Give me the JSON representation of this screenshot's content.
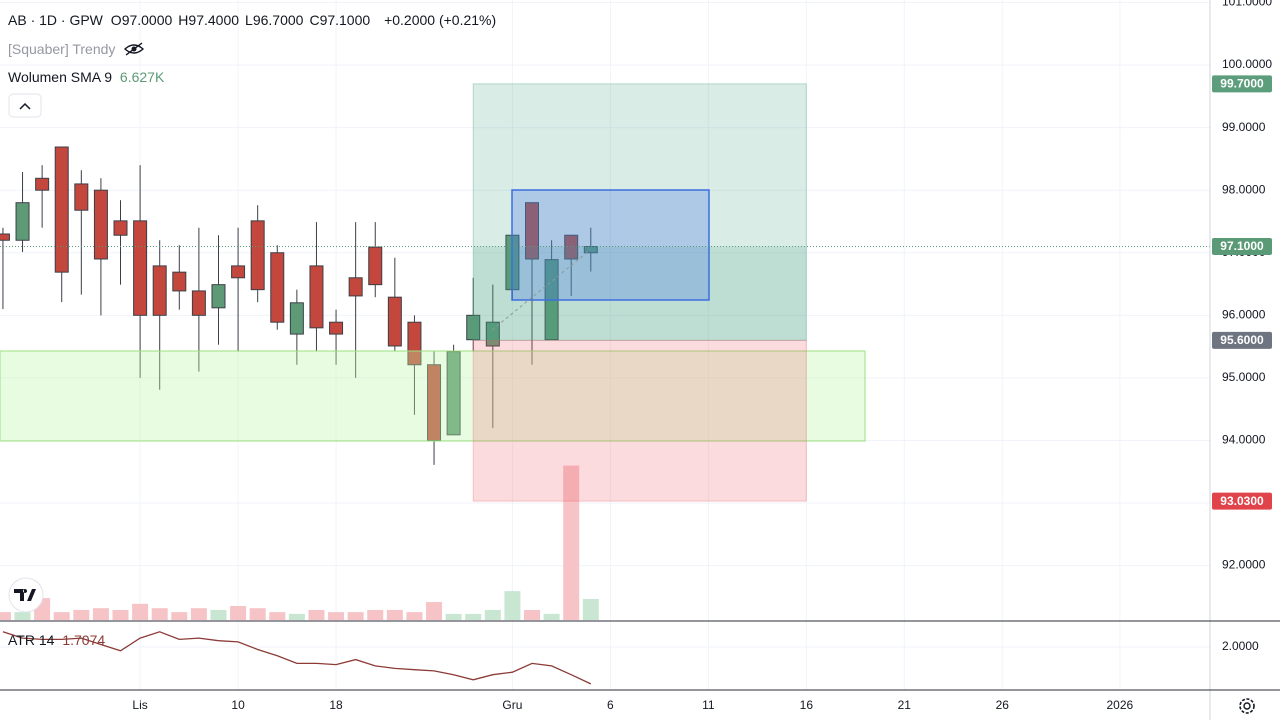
{
  "header": {
    "symbol": "AB · 1D · GPW",
    "ohlc": [
      {
        "key": "O",
        "value": "97.0000"
      },
      {
        "key": "H",
        "value": "97.4000"
      },
      {
        "key": "L",
        "value": "96.7000"
      },
      {
        "key": "C",
        "value": "97.1000"
      }
    ],
    "change": "+0.2000 (+0.21%)"
  },
  "indicators": {
    "trend": "[Squaber] Trendy",
    "volume_label": "Wolumen SMA 9",
    "volume_value": "6.627K",
    "atr_label": "ATR 14",
    "atr_value": "1.7074"
  },
  "chart_data": {
    "type": "candlestick",
    "open": [
      97.3,
      97.2,
      98.19,
      98.69,
      98.1,
      98.0,
      97.51,
      97.51,
      96.79,
      96.69,
      96.39,
      96.12,
      96.79,
      97.51,
      97.0,
      95.7,
      96.79,
      95.89,
      96.6,
      97.09,
      96.29,
      95.89,
      95.21,
      94.09,
      95.61,
      95.51,
      96.41,
      97.8,
      95.61,
      97.28,
      97.0
    ],
    "high": [
      97.4,
      98.29,
      98.4,
      98.69,
      98.32,
      98.19,
      97.84,
      98.4,
      97.2,
      97.12,
      97.4,
      97.28,
      97.4,
      97.76,
      97.12,
      96.41,
      97.49,
      96.09,
      97.49,
      97.49,
      96.92,
      96.0,
      95.42,
      95.53,
      96.6,
      96.49,
      97.28,
      97.8,
      97.2,
      97.28,
      97.4
    ],
    "low": [
      96.1,
      97.01,
      97.4,
      96.21,
      96.33,
      96.0,
      96.49,
      95.0,
      94.81,
      96.09,
      95.1,
      95.53,
      95.42,
      96.21,
      95.77,
      95.21,
      95.42,
      95.21,
      95.0,
      96.29,
      95.42,
      94.41,
      93.61,
      94.09,
      95.42,
      94.2,
      96.25,
      95.21,
      95.61,
      96.31,
      96.7
    ],
    "close": [
      97.2,
      97.8,
      98.0,
      96.69,
      97.68,
      96.9,
      97.28,
      96.0,
      96.0,
      96.39,
      96.0,
      96.49,
      96.6,
      96.41,
      95.89,
      96.2,
      95.8,
      95.7,
      96.31,
      96.49,
      95.51,
      95.21,
      94.0,
      95.42,
      96.0,
      95.89,
      97.28,
      96.9,
      96.89,
      96.9,
      97.1
    ],
    "volume": [
      1.8,
      1.8,
      5.0,
      1.8,
      2.3,
      2.7,
      2.3,
      3.7,
      2.7,
      1.8,
      2.7,
      2.3,
      3.2,
      2.7,
      1.8,
      1.4,
      2.3,
      1.8,
      1.8,
      2.3,
      2.3,
      1.8,
      4.1,
      1.4,
      1.4,
      2.3,
      6.6,
      2.3,
      1.4,
      35.3,
      4.8
    ],
    "atr": [
      2.12,
      2.07,
      2.06,
      2.06,
      2.07,
      2.02,
      1.97,
      2.07,
      2.12,
      2.06,
      2.07,
      2.05,
      2.04,
      1.98,
      1.93,
      1.87,
      1.87,
      1.86,
      1.9,
      1.85,
      1.83,
      1.82,
      1.81,
      1.78,
      1.74,
      1.78,
      1.8,
      1.87,
      1.85,
      1.78,
      1.7074
    ],
    "up_color": "#5f9a77",
    "down_color": "#c4473d",
    "volume_up_color": "#c8e6d2",
    "volume_down_color": "#f6c4c6",
    "atr_color": "#8c3b37",
    "xlim": [
      -0.15,
      61.6
    ],
    "xticks": [
      {
        "value": 7,
        "label": "Lis"
      },
      {
        "value": 12,
        "label": "10"
      },
      {
        "value": 17,
        "label": "18"
      },
      {
        "value": 26,
        "label": "Gru"
      },
      {
        "value": 31,
        "label": "6"
      },
      {
        "value": 36,
        "label": "11"
      },
      {
        "value": 41,
        "label": "16"
      },
      {
        "value": 46,
        "label": "21"
      },
      {
        "value": 51,
        "label": "26"
      },
      {
        "value": 57,
        "label": "2026"
      }
    ],
    "ylim": [
      91.13,
      101.04
    ],
    "yticks": [
      {
        "value": 101,
        "label": "101.0000"
      },
      {
        "value": 100,
        "label": "100.0000"
      },
      {
        "value": 99,
        "label": "99.0000"
      },
      {
        "value": 98,
        "label": "98.0000"
      },
      {
        "value": 97,
        "label": "97.0000"
      },
      {
        "value": 96,
        "label": "96.0000"
      },
      {
        "value": 95,
        "label": "95.0000"
      },
      {
        "value": 94,
        "label": "94.0000"
      },
      {
        "value": 93,
        "label": "93.0000"
      },
      {
        "value": 92,
        "label": "92.0000"
      }
    ],
    "volume_ylim": [
      0,
      40
    ],
    "atr_ylim": [
      1.659,
      2.198
    ],
    "atr_yticks": [
      {
        "value": 2,
        "label": "2.0000"
      }
    ],
    "grid": true,
    "position": {
      "target": {
        "value": 99.7,
        "label": "99.7000"
      },
      "entry": {
        "value": 95.6,
        "label": "95.6000"
      },
      "stop": {
        "value": 93.03,
        "label": "93.0300"
      }
    },
    "last_price": {
      "value": 97.1,
      "label": "97.1000"
    }
  }
}
